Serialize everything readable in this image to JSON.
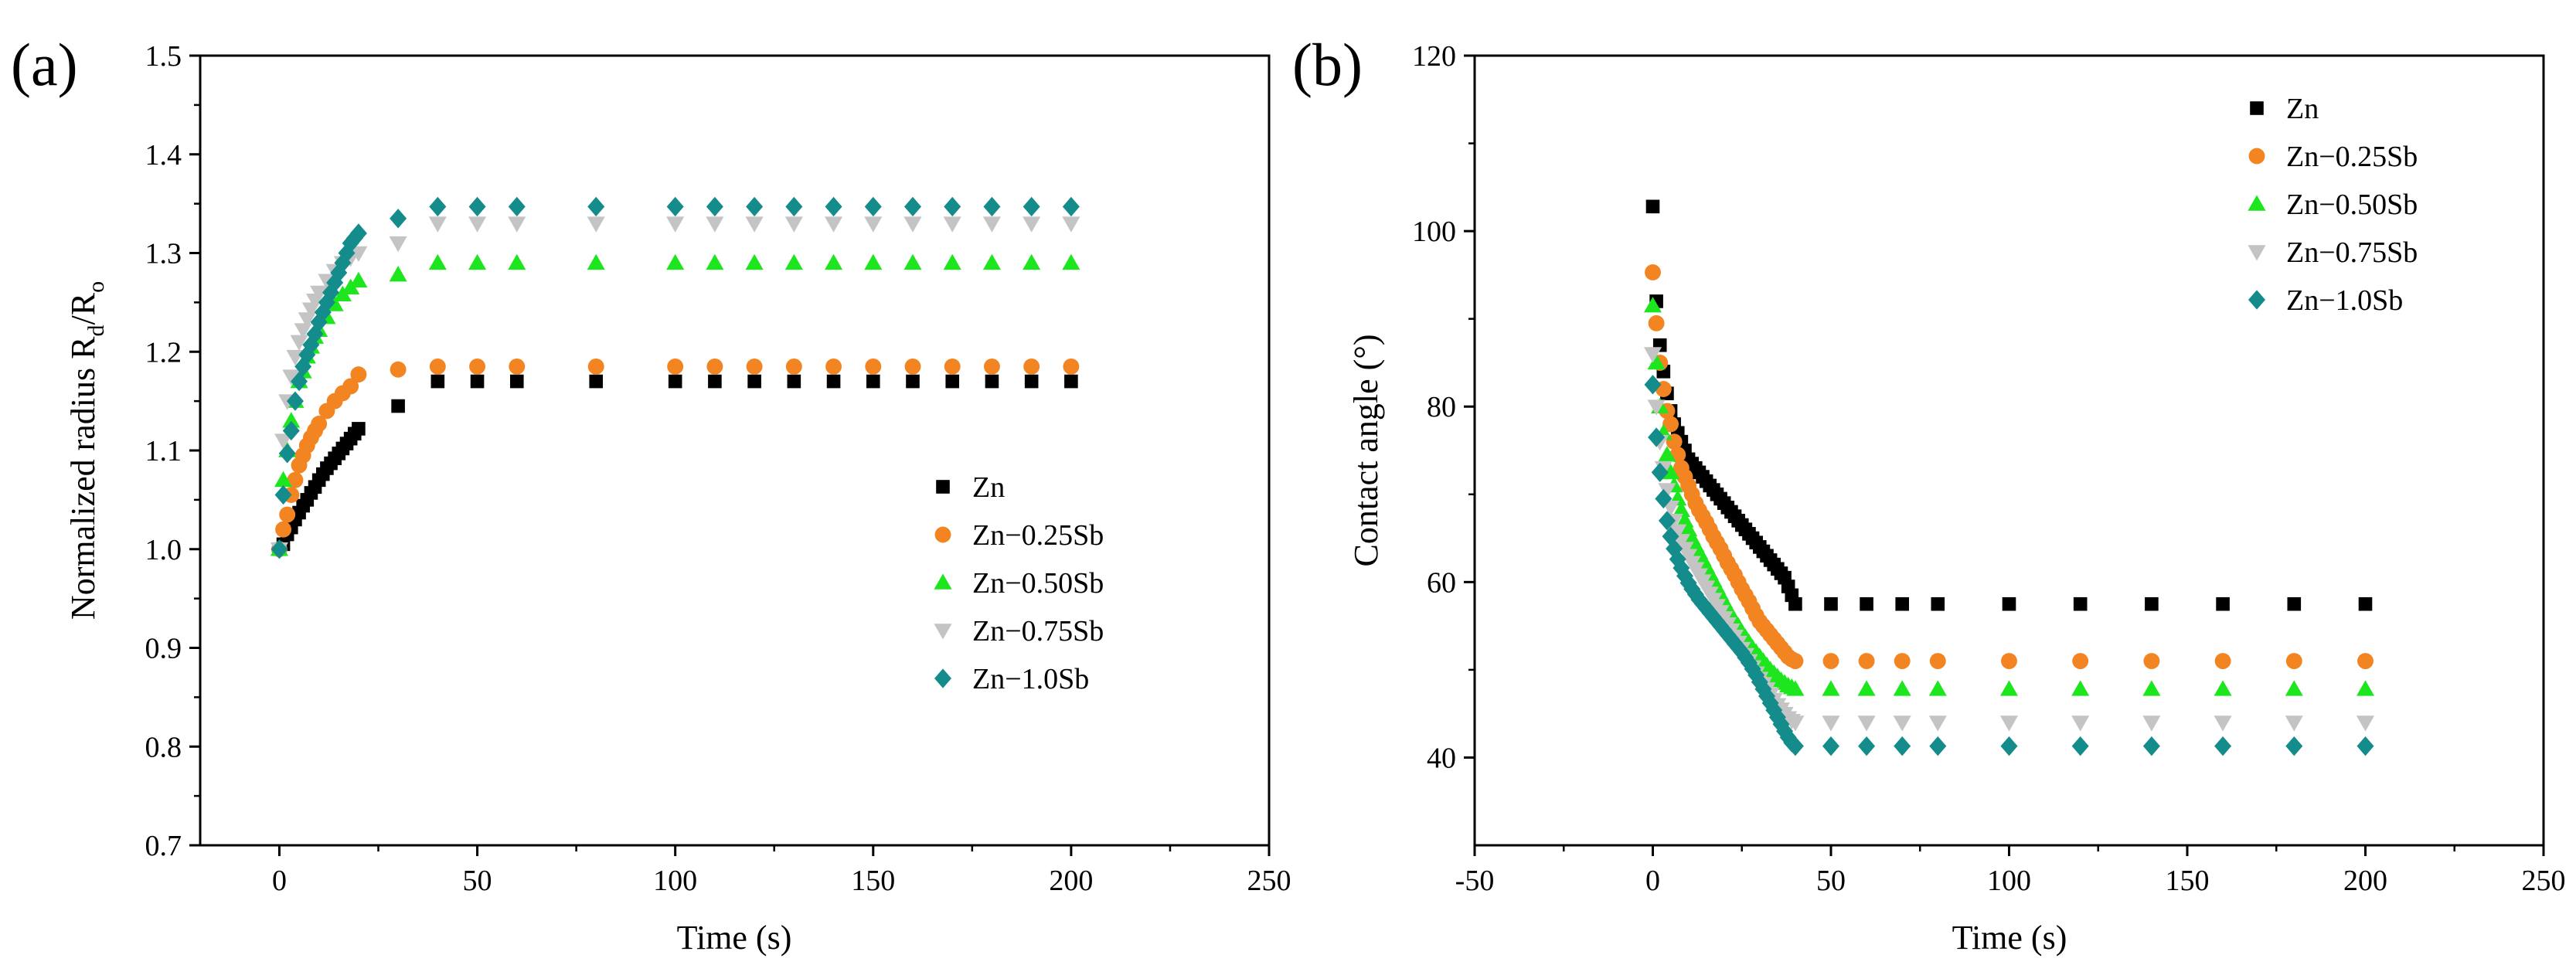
{
  "chart_data": [
    {
      "type": "scatter",
      "panel_label": "(a)",
      "xlabel": "Time (s)",
      "ylabel": "Normalized radius R",
      "ylabel_sub1": "d",
      "ylabel_mid": "/R",
      "ylabel_sub2": "o",
      "xlim": [
        -20,
        250
      ],
      "ylim": [
        0.7,
        1.5
      ],
      "xticks": [
        0,
        50,
        100,
        150,
        200,
        250
      ],
      "yticks": [
        0.7,
        0.8,
        0.9,
        1.0,
        1.1,
        1.2,
        1.3,
        1.4,
        1.5
      ],
      "xtick_labels": [
        "0",
        "50",
        "100",
        "150",
        "200",
        "250"
      ],
      "ytick_labels": [
        "0.7",
        "0.8",
        "0.9",
        "1.0",
        "1.1",
        "1.2",
        "1.3",
        "1.4",
        "1.5"
      ],
      "legend_position": "lower-right",
      "series": [
        {
          "name": "Zn",
          "marker": "square",
          "color": "#000000",
          "x": [
            0,
            1,
            2,
            3,
            4,
            5,
            6,
            7,
            8,
            9,
            10,
            11,
            12,
            13,
            14,
            15,
            16,
            17,
            18,
            19,
            20,
            30,
            40,
            50,
            60,
            80,
            100,
            110,
            120,
            130,
            140,
            150,
            160,
            170,
            180,
            190,
            200
          ],
          "y": [
            1.0,
            1.005,
            1.015,
            1.022,
            1.03,
            1.037,
            1.044,
            1.05,
            1.057,
            1.063,
            1.07,
            1.076,
            1.082,
            1.087,
            1.092,
            1.097,
            1.102,
            1.107,
            1.112,
            1.117,
            1.122,
            1.145,
            1.17,
            1.17,
            1.17,
            1.17,
            1.17,
            1.17,
            1.17,
            1.17,
            1.17,
            1.17,
            1.17,
            1.17,
            1.17,
            1.17,
            1.17
          ]
        },
        {
          "name": "Zn−0.25Sb",
          "marker": "circle",
          "color": "#f28522",
          "x": [
            0,
            1,
            2,
            3,
            4,
            5,
            6,
            7,
            8,
            9,
            10,
            12,
            14,
            16,
            18,
            20,
            30,
            40,
            50,
            60,
            80,
            100,
            110,
            120,
            130,
            140,
            150,
            160,
            170,
            180,
            190,
            200
          ],
          "y": [
            1.0,
            1.02,
            1.035,
            1.055,
            1.07,
            1.085,
            1.095,
            1.105,
            1.113,
            1.12,
            1.127,
            1.14,
            1.15,
            1.158,
            1.165,
            1.177,
            1.182,
            1.185,
            1.185,
            1.185,
            1.185,
            1.185,
            1.185,
            1.185,
            1.185,
            1.185,
            1.185,
            1.185,
            1.185,
            1.185,
            1.185,
            1.185
          ]
        },
        {
          "name": "Zn−0.50Sb",
          "marker": "triangle-up",
          "color": "#1ee61e",
          "x": [
            0,
            1,
            2,
            3,
            4,
            5,
            6,
            7,
            8,
            9,
            10,
            12,
            14,
            16,
            18,
            20,
            30,
            40,
            50,
            60,
            80,
            100,
            110,
            120,
            130,
            140,
            150,
            160,
            170,
            180,
            190,
            200
          ],
          "y": [
            1.0,
            1.07,
            1.1,
            1.13,
            1.15,
            1.17,
            1.18,
            1.195,
            1.205,
            1.215,
            1.222,
            1.235,
            1.248,
            1.258,
            1.265,
            1.272,
            1.278,
            1.29,
            1.29,
            1.29,
            1.29,
            1.29,
            1.29,
            1.29,
            1.29,
            1.29,
            1.29,
            1.29,
            1.29,
            1.29,
            1.29,
            1.29
          ]
        },
        {
          "name": "Zn−0.75Sb",
          "marker": "triangle-down",
          "color": "#c4c4c4",
          "x": [
            0,
            1,
            2,
            3,
            4,
            5,
            6,
            7,
            8,
            9,
            10,
            12,
            14,
            16,
            18,
            20,
            30,
            40,
            50,
            60,
            80,
            100,
            110,
            120,
            130,
            140,
            150,
            160,
            170,
            180,
            190,
            200
          ],
          "y": [
            1.0,
            1.11,
            1.15,
            1.175,
            1.195,
            1.21,
            1.222,
            1.233,
            1.243,
            1.252,
            1.26,
            1.272,
            1.282,
            1.29,
            1.295,
            1.3,
            1.31,
            1.33,
            1.33,
            1.33,
            1.33,
            1.33,
            1.33,
            1.33,
            1.33,
            1.33,
            1.33,
            1.33,
            1.33,
            1.33,
            1.33,
            1.33
          ]
        },
        {
          "name": "Zn−1.0Sb",
          "marker": "diamond",
          "color": "#148c8c",
          "x": [
            0,
            1,
            2,
            3,
            4,
            5,
            6,
            7,
            8,
            9,
            10,
            11,
            12,
            13,
            14,
            15,
            16,
            17,
            18,
            19,
            20,
            30,
            40,
            50,
            60,
            80,
            100,
            110,
            120,
            130,
            140,
            150,
            160,
            170,
            180,
            190,
            200
          ],
          "y": [
            1.0,
            1.055,
            1.097,
            1.12,
            1.15,
            1.17,
            1.185,
            1.197,
            1.207,
            1.218,
            1.23,
            1.24,
            1.25,
            1.26,
            1.27,
            1.28,
            1.29,
            1.3,
            1.31,
            1.315,
            1.32,
            1.335,
            1.347,
            1.347,
            1.347,
            1.347,
            1.347,
            1.347,
            1.347,
            1.347,
            1.347,
            1.347,
            1.347,
            1.347,
            1.347,
            1.347,
            1.347
          ]
        }
      ]
    },
    {
      "type": "scatter",
      "panel_label": "(b)",
      "xlabel": "Time (s)",
      "ylabel": "Contact angle (°)",
      "xlim": [
        -50,
        250
      ],
      "ylim": [
        30,
        120
      ],
      "xticks": [
        -50,
        0,
        50,
        100,
        150,
        200,
        250
      ],
      "yticks": [
        40,
        60,
        80,
        100,
        120
      ],
      "xtick_labels": [
        "-50",
        "0",
        "50",
        "100",
        "150",
        "200",
        "250"
      ],
      "ytick_labels": [
        "40",
        "60",
        "80",
        "100",
        "120"
      ],
      "legend_position": "upper-right",
      "series": [
        {
          "name": "Zn",
          "marker": "square",
          "color": "#000000",
          "x": [
            0,
            1,
            2,
            3,
            4,
            5,
            6,
            7,
            8,
            9,
            10,
            11,
            12,
            13,
            14,
            15,
            16,
            17,
            18,
            19,
            20,
            21,
            22,
            23,
            24,
            25,
            26,
            27,
            28,
            29,
            30,
            31,
            32,
            33,
            34,
            35,
            36,
            37,
            38,
            39,
            40,
            50,
            60,
            70,
            80,
            100,
            120,
            140,
            160,
            180,
            200
          ],
          "y": [
            102.8,
            92,
            87,
            84,
            81.5,
            79.5,
            78,
            77,
            76,
            75,
            74,
            73.5,
            73,
            72.5,
            72,
            71.5,
            71,
            70.5,
            70,
            69.5,
            69,
            68.5,
            68,
            67.5,
            67,
            66.5,
            66,
            65.5,
            65,
            64.5,
            64,
            63.5,
            63,
            62.5,
            62,
            61.5,
            61,
            60.5,
            59.5,
            58.5,
            57.5,
            57.5,
            57.5,
            57.5,
            57.5,
            57.5,
            57.5,
            57.5,
            57.5,
            57.5,
            57.5
          ]
        },
        {
          "name": "Zn−0.25Sb",
          "marker": "circle",
          "color": "#f28522",
          "x": [
            0,
            1,
            2,
            3,
            4,
            5,
            6,
            7,
            8,
            9,
            10,
            11,
            12,
            13,
            14,
            15,
            16,
            17,
            18,
            19,
            20,
            21,
            22,
            23,
            24,
            25,
            26,
            27,
            28,
            29,
            30,
            31,
            32,
            33,
            34,
            35,
            36,
            37,
            38,
            39,
            40,
            50,
            60,
            70,
            80,
            100,
            120,
            140,
            160,
            180,
            200
          ],
          "y": [
            95.3,
            89.5,
            85,
            82,
            79.5,
            78,
            76,
            74.5,
            73,
            72,
            71,
            70,
            69,
            68.2,
            67.5,
            66.8,
            66,
            65.2,
            64.5,
            63.8,
            63,
            62.2,
            61.5,
            60.8,
            60,
            59.2,
            58.5,
            57.8,
            57,
            56.2,
            55.5,
            55,
            54.5,
            54,
            53.5,
            53,
            52.5,
            52,
            51.5,
            51.2,
            51,
            51,
            51,
            51,
            51,
            51,
            51,
            51,
            51,
            51,
            51
          ]
        },
        {
          "name": "Zn−0.50Sb",
          "marker": "triangle-up",
          "color": "#1ee61e",
          "x": [
            0,
            1,
            2,
            3,
            4,
            5,
            6,
            7,
            8,
            9,
            10,
            11,
            12,
            13,
            14,
            15,
            16,
            17,
            18,
            19,
            20,
            21,
            22,
            23,
            24,
            25,
            26,
            27,
            28,
            29,
            30,
            31,
            32,
            33,
            34,
            35,
            36,
            37,
            38,
            39,
            40,
            50,
            60,
            70,
            80,
            100,
            120,
            140,
            160,
            180,
            200
          ],
          "y": [
            91.5,
            85,
            80,
            77,
            74.5,
            72.5,
            71,
            69.5,
            68.2,
            67,
            66,
            65,
            64.2,
            63.4,
            62.6,
            61.8,
            61,
            60.2,
            59.4,
            58.6,
            57.8,
            57,
            56.3,
            55.6,
            55,
            54.3,
            53.7,
            53.1,
            52.5,
            52,
            51.5,
            51,
            50.5,
            50,
            49.6,
            49.2,
            48.8,
            48.5,
            48.2,
            48,
            47.8,
            47.8,
            47.8,
            47.8,
            47.8,
            47.8,
            47.8,
            47.8,
            47.8,
            47.8,
            47.8
          ]
        },
        {
          "name": "Zn−0.75Sb",
          "marker": "triangle-down",
          "color": "#c4c4c4",
          "x": [
            0,
            1,
            2,
            3,
            4,
            5,
            6,
            7,
            8,
            9,
            10,
            11,
            12,
            13,
            14,
            15,
            16,
            17,
            18,
            19,
            20,
            21,
            22,
            23,
            24,
            25,
            26,
            27,
            28,
            29,
            30,
            31,
            32,
            33,
            34,
            35,
            36,
            37,
            38,
            39,
            40,
            50,
            60,
            70,
            80,
            100,
            120,
            140,
            160,
            180,
            200
          ],
          "y": [
            86,
            80,
            76,
            73,
            70.5,
            68.5,
            67,
            65.8,
            64.7,
            63.8,
            63,
            62.2,
            61.5,
            60.8,
            60.1,
            59.4,
            58.7,
            58,
            57.3,
            56.6,
            55.9,
            55.2,
            54.5,
            53.8,
            53.1,
            52.4,
            51.7,
            51,
            50.3,
            49.6,
            49,
            48.4,
            47.8,
            47.2,
            46.6,
            46,
            45.5,
            45,
            44.5,
            44.2,
            44,
            44,
            44,
            44,
            44,
            44,
            44,
            44,
            44,
            44,
            44
          ]
        },
        {
          "name": "Zn−1.0Sb",
          "marker": "diamond",
          "color": "#148c8c",
          "x": [
            0,
            1,
            2,
            3,
            4,
            5,
            6,
            7,
            8,
            9,
            10,
            11,
            12,
            13,
            14,
            15,
            16,
            17,
            18,
            19,
            20,
            21,
            22,
            23,
            24,
            25,
            26,
            27,
            28,
            29,
            30,
            31,
            32,
            33,
            34,
            35,
            36,
            37,
            38,
            39,
            40,
            50,
            60,
            70,
            80,
            100,
            120,
            140,
            160,
            180,
            200
          ],
          "y": [
            82.5,
            76.5,
            72.5,
            69.5,
            67,
            65.2,
            63.8,
            62.6,
            61.6,
            60.7,
            59.9,
            59.2,
            58.6,
            58,
            57.5,
            57,
            56.5,
            56,
            55.5,
            55,
            54.5,
            54,
            53.5,
            53,
            52.5,
            52,
            51.4,
            50.8,
            50.1,
            49.4,
            48.6,
            47.8,
            47,
            46.2,
            45.4,
            44.6,
            43.8,
            43,
            42.3,
            41.7,
            41.3,
            41.3,
            41.3,
            41.3,
            41.3,
            41.3,
            41.3,
            41.3,
            41.3,
            41.3,
            41.3
          ]
        }
      ]
    }
  ]
}
